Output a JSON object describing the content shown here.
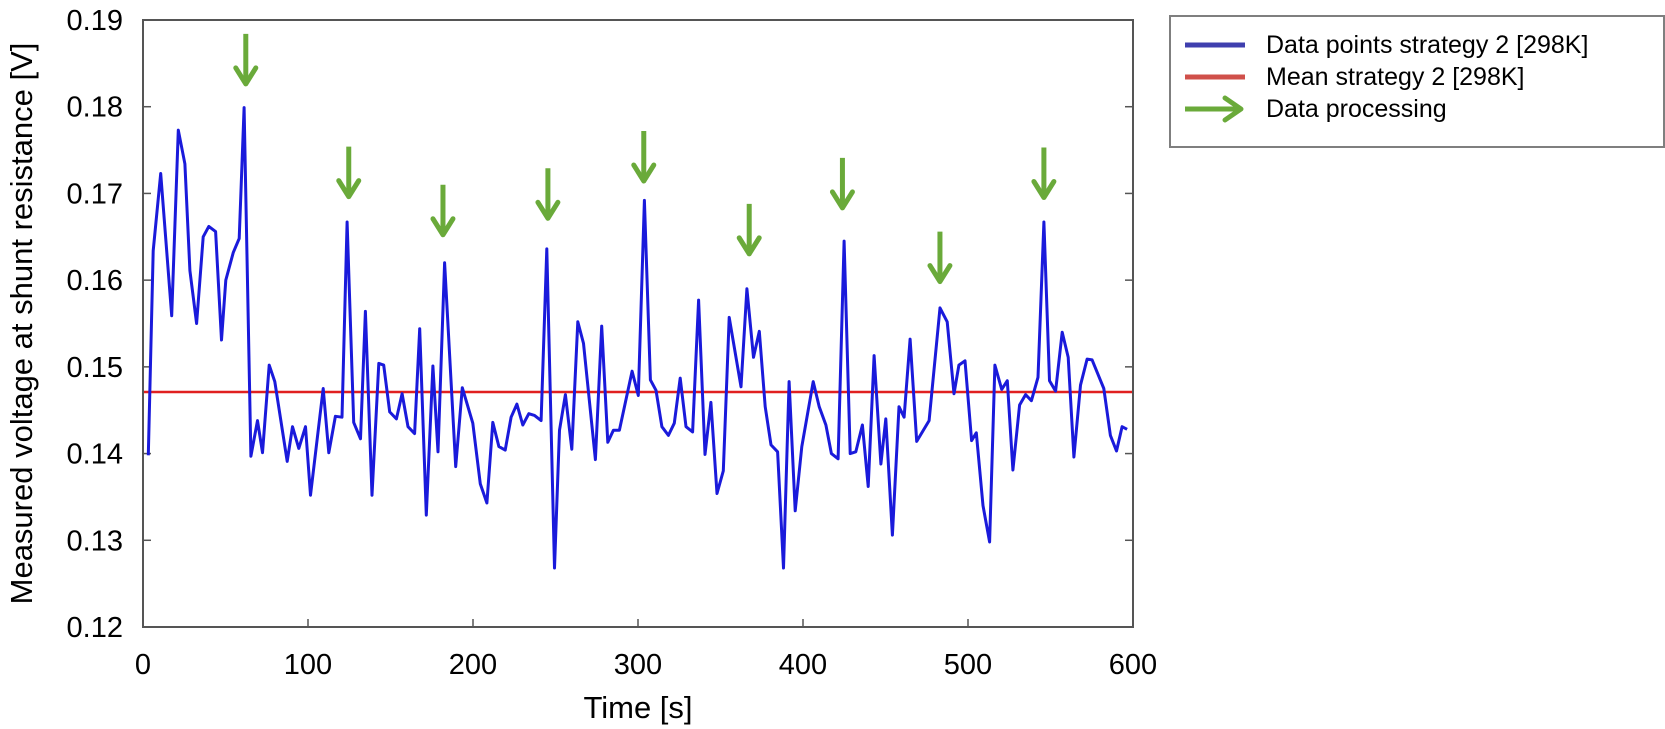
{
  "chart_data": {
    "type": "line",
    "title": "",
    "xlabel": "Time [s]",
    "ylabel": "Measured voltage at shunt resistance [V]",
    "xlim": [
      0,
      600
    ],
    "ylim": [
      0.12,
      0.19
    ],
    "xticks": [
      0,
      100,
      200,
      300,
      400,
      500,
      600
    ],
    "xtick_labels": [
      "0",
      "100",
      "200",
      "300",
      "400",
      "500",
      "600"
    ],
    "yticks": [
      0.12,
      0.13,
      0.14,
      0.15,
      0.16,
      0.17,
      0.18,
      0.19
    ],
    "ytick_labels": [
      "0.12",
      "0.13",
      "0.14",
      "0.15",
      "0.16",
      "0.17",
      "0.18",
      "0.19"
    ],
    "grid": false,
    "legend_position": "outside-top-right",
    "colors": {
      "data": "#1a1adb",
      "mean": "#e02020",
      "arrow": "#6aaa3a",
      "legend_data": "#3f3fae",
      "legend_mean": "#d0504a"
    },
    "series": [
      {
        "name": "Data points strategy 2 [298K]",
        "x": [
          3.2,
          6.2,
          10.7,
          17.4,
          21.4,
          25.4,
          28.4,
          32.5,
          36.5,
          39.9,
          44,
          47.6,
          50.2,
          54.7,
          58.3,
          61.3,
          65.4,
          69.4,
          72.4,
          76.5,
          79.9,
          87.4,
          90.6,
          94.4,
          98.5,
          101.5,
          109.2,
          112.6,
          116.6,
          120.6,
          123.7,
          127.7,
          131.8,
          134.8,
          138.8,
          142.9,
          145.9,
          149.5,
          153.6,
          157,
          160.6,
          164.6,
          167.7,
          171.7,
          175.7,
          178.8,
          182.8,
          189.5,
          193.5,
          199.9,
          204.4,
          208.4,
          212,
          215.7,
          219.5,
          223.1,
          226.6,
          230.2,
          233.8,
          237.3,
          241.3,
          244.7,
          249.4,
          252.4,
          256,
          259.9,
          263.5,
          267,
          274.2,
          278,
          281.7,
          285.1,
          288.7,
          296.4,
          300.2,
          303.9,
          307.5,
          310.9,
          314.5,
          318.4,
          322,
          325.6,
          329.1,
          333.1,
          336.7,
          340.6,
          344.2,
          347.9,
          351.7,
          355.3,
          362.4,
          366,
          370,
          373.5,
          377.1,
          380.6,
          384.6,
          388.2,
          391.6,
          395.3,
          399.3,
          406.2,
          409.8,
          413.9,
          417.2,
          421.3,
          424.9,
          428.6,
          432,
          436,
          439.5,
          443.1,
          447.2,
          450.2,
          454.2,
          458.2,
          461.3,
          464.9,
          468.9,
          476.4,
          483,
          487.4,
          491.5,
          494.5,
          498.2,
          502.2,
          505,
          509.1,
          513.1,
          516.3,
          520.4,
          523.8,
          527.2,
          531.3,
          534.9,
          538.4,
          542.4,
          546,
          549.4,
          553.1,
          557.1,
          560.7,
          564.2,
          568.2,
          572.2,
          575.2,
          582.3,
          586.3,
          590,
          593.4,
          596.4
        ],
        "y": [
          0.1398,
          0.1634,
          0.1723,
          0.1559,
          0.1773,
          0.1734,
          0.1611,
          0.155,
          0.165,
          0.1662,
          0.1656,
          0.1531,
          0.16,
          0.1632,
          0.1648,
          0.1799,
          0.1397,
          0.1438,
          0.1401,
          0.1502,
          0.1483,
          0.1391,
          0.1431,
          0.1406,
          0.1431,
          0.1352,
          0.1475,
          0.1401,
          0.1443,
          0.1442,
          0.1667,
          0.1436,
          0.1417,
          0.1564,
          0.1352,
          0.1504,
          0.1502,
          0.1448,
          0.144,
          0.1469,
          0.1431,
          0.1423,
          0.1544,
          0.1329,
          0.1501,
          0.1402,
          0.162,
          0.1385,
          0.1476,
          0.1435,
          0.1365,
          0.1343,
          0.1436,
          0.1408,
          0.1404,
          0.1442,
          0.1457,
          0.1433,
          0.1446,
          0.1444,
          0.1438,
          0.1636,
          0.1268,
          0.1427,
          0.1468,
          0.1405,
          0.1552,
          0.1527,
          0.1393,
          0.1547,
          0.1413,
          0.1427,
          0.1427,
          0.1495,
          0.1467,
          0.1692,
          0.1485,
          0.1473,
          0.1431,
          0.1421,
          0.1435,
          0.1487,
          0.1431,
          0.1425,
          0.1577,
          0.1399,
          0.1459,
          0.1354,
          0.138,
          0.1557,
          0.1477,
          0.159,
          0.1511,
          0.1541,
          0.1454,
          0.141,
          0.1402,
          0.1268,
          0.1483,
          0.1334,
          0.1408,
          0.1483,
          0.1454,
          0.1433,
          0.14,
          0.1394,
          0.1645,
          0.14,
          0.1402,
          0.1433,
          0.1362,
          0.1513,
          0.1388,
          0.144,
          0.1306,
          0.1454,
          0.1442,
          0.1532,
          0.1414,
          0.1438,
          0.1568,
          0.1552,
          0.1469,
          0.1502,
          0.1507,
          0.1415,
          0.1424,
          0.134,
          0.1298,
          0.1502,
          0.1474,
          0.1484,
          0.1381,
          0.1456,
          0.1468,
          0.1461,
          0.1488,
          0.1667,
          0.1484,
          0.1472,
          0.154,
          0.1511,
          0.1396,
          0.1479,
          0.1509,
          0.1508,
          0.1475,
          0.1421,
          0.1403,
          0.1431,
          0.1428
        ]
      },
      {
        "name": "Mean strategy 2 [298K]",
        "value": 0.1471
      }
    ],
    "annotations": {
      "name": "Data processing",
      "arrows": [
        {
          "x": 62.3,
          "y": 0.1824
        },
        {
          "x": 124.7,
          "y": 0.1694
        },
        {
          "x": 181.8,
          "y": 0.165
        },
        {
          "x": 245.4,
          "y": 0.1669
        },
        {
          "x": 303.5,
          "y": 0.1712
        },
        {
          "x": 367.4,
          "y": 0.1628
        },
        {
          "x": 423.9,
          "y": 0.1681
        },
        {
          "x": 483,
          "y": 0.1596
        },
        {
          "x": 546,
          "y": 0.1693
        }
      ]
    },
    "legend": [
      {
        "label": "Data points strategy 2 [298K]",
        "marker": "line"
      },
      {
        "label": "Mean strategy 2 [298K]",
        "marker": "line"
      },
      {
        "label": "Data processing",
        "marker": "arrow"
      }
    ]
  }
}
